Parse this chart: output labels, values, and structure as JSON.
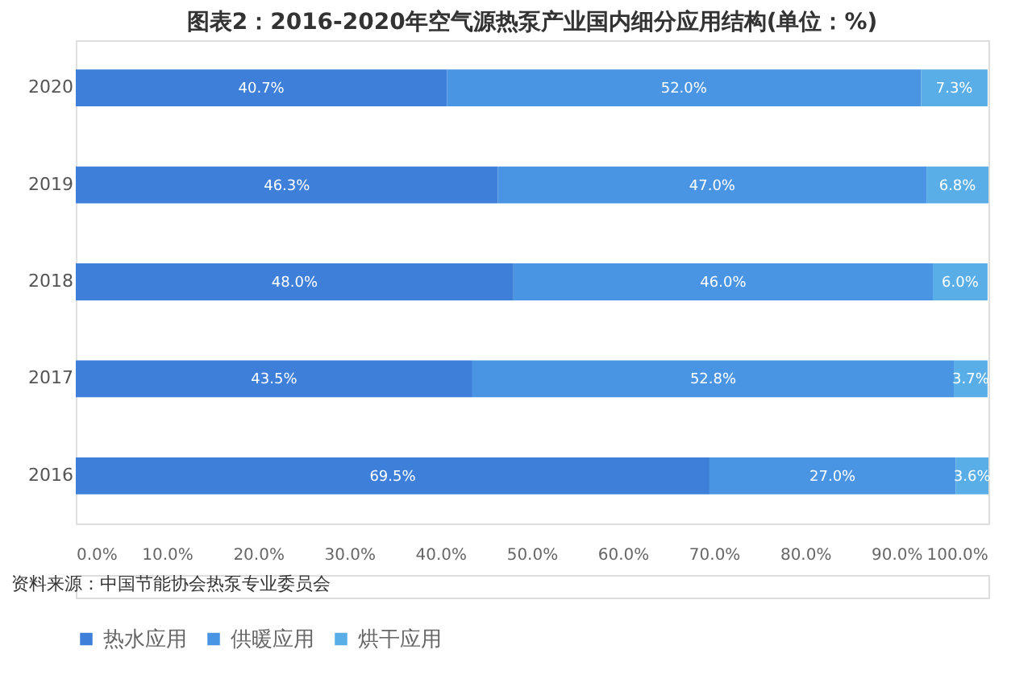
{
  "chart_data": {
    "type": "bar",
    "orientation": "horizontal",
    "stacked": true,
    "title": "图表2：2016-2020年空气源热泵产业国内细分应用结构(单位：%)",
    "categories": [
      "2020",
      "2019",
      "2018",
      "2017",
      "2016"
    ],
    "series": [
      {
        "name": "热水应用",
        "color": "#3d7fd9",
        "values": [
          40.7,
          46.3,
          48.0,
          43.5,
          69.5
        ],
        "value_labels": [
          "40.7%",
          "46.3%",
          "48.0%",
          "43.5%",
          "69.5%"
        ]
      },
      {
        "name": "供暖应用",
        "color": "#4a94e4",
        "values": [
          52.0,
          47.0,
          46.0,
          52.8,
          27.0
        ],
        "value_labels": [
          "52.0%",
          "47.0%",
          "46.0%",
          "52.8%",
          "27.0%"
        ]
      },
      {
        "name": "烘干应用",
        "color": "#5aaee8",
        "values": [
          7.3,
          6.8,
          6.0,
          3.7,
          3.6
        ],
        "value_labels": [
          "7.3%",
          "6.8%",
          "6.0%",
          "3.7%",
          "3.6%"
        ]
      }
    ],
    "xlim": [
      0,
      100.1
    ],
    "xticks": [
      {
        "value": 0,
        "label": "0.0%"
      },
      {
        "value": 10,
        "label": "10.0%"
      },
      {
        "value": 20,
        "label": "20.0%"
      },
      {
        "value": 30,
        "label": "30.0%"
      },
      {
        "value": 40,
        "label": "40.0%"
      },
      {
        "value": 50,
        "label": "50.0%"
      },
      {
        "value": 60,
        "label": "60.0%"
      },
      {
        "value": 70,
        "label": "70.0%"
      },
      {
        "value": 80,
        "label": "80.0%"
      },
      {
        "value": 90,
        "label": "90.0%"
      },
      {
        "value": 100,
        "label": "100.0%"
      }
    ],
    "legend": "bottom",
    "grid": false,
    "annotations": [
      "资料来源：中国节能协会热泵专业委员会"
    ]
  }
}
